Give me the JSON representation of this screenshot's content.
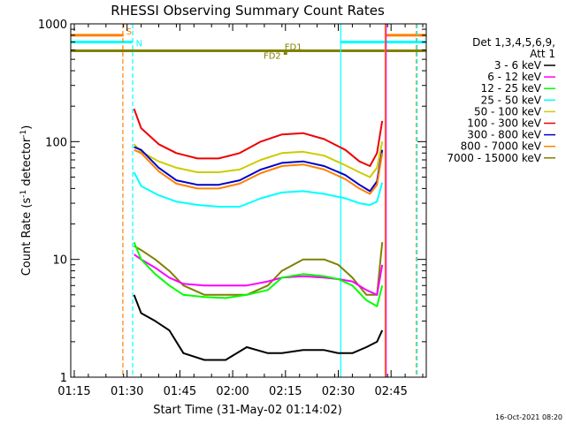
{
  "chart_data": {
    "type": "line",
    "title": "RHESSI Observing Summary Count Rates",
    "xlabel": "Start Time (31-May-02 01:14:02)",
    "ylabel_parts": [
      "Count Rate (s",
      "-1",
      " detector",
      "-1",
      ")"
    ],
    "yscale": "log",
    "ylim": [
      1,
      1000
    ],
    "xlim_minutes": [
      0,
      101
    ],
    "x_ticks": [
      {
        "label": "01:15",
        "min": 1
      },
      {
        "label": "01:30",
        "min": 16
      },
      {
        "label": "01:45",
        "min": 31
      },
      {
        "label": "02:00",
        "min": 46
      },
      {
        "label": "02:15",
        "min": 61
      },
      {
        "label": "02:30",
        "min": 76
      },
      {
        "label": "02:45",
        "min": 91
      }
    ],
    "y_ticks": [
      {
        "label": "1",
        "value": 1
      },
      {
        "label": "10",
        "value": 10
      },
      {
        "label": "100",
        "value": 100
      },
      {
        "label": "1000",
        "value": 1000
      }
    ],
    "legend": {
      "placement": "right",
      "header": [
        "Det 1,3,4,5,6,9,",
        "Att 1"
      ],
      "entries": [
        {
          "name": "3 - 6 keV",
          "color": "#000000"
        },
        {
          "name": "6 - 12 keV",
          "color": "#ff00ff"
        },
        {
          "name": "12 - 25 keV",
          "color": "#00ff00"
        },
        {
          "name": "25 - 50 keV",
          "color": "#00ffff"
        },
        {
          "name": "50 - 100 keV",
          "color": "#cccc00"
        },
        {
          "name": "100 - 300 keV",
          "color": "#ee0000"
        },
        {
          "name": "300 - 800 keV",
          "color": "#0000cc"
        },
        {
          "name": "800 - 7000 keV",
          "color": "#ff8000"
        },
        {
          "name": "7000 - 15000 keV",
          "color": "#808000"
        }
      ]
    },
    "series": [
      {
        "name": "100 - 300 keV",
        "color": "#ee0000",
        "x": [
          18,
          20,
          25,
          30,
          36,
          42,
          48,
          54,
          60,
          66,
          72,
          78,
          82,
          85,
          87,
          88.5
        ],
        "y": [
          190,
          130,
          95,
          80,
          72,
          72,
          80,
          100,
          115,
          118,
          105,
          85,
          68,
          62,
          80,
          150
        ]
      },
      {
        "name": "50 - 100 keV",
        "color": "#cccc00",
        "x": [
          18,
          20,
          25,
          30,
          36,
          42,
          48,
          54,
          60,
          66,
          72,
          78,
          82,
          85,
          87,
          88.5
        ],
        "y": [
          95,
          82,
          68,
          60,
          55,
          55,
          58,
          70,
          80,
          82,
          76,
          63,
          55,
          50,
          60,
          100
        ]
      },
      {
        "name": "300 - 800 keV",
        "color": "#0000cc",
        "x": [
          18,
          20,
          25,
          30,
          36,
          42,
          48,
          54,
          60,
          66,
          72,
          78,
          82,
          85,
          87,
          88.5
        ],
        "y": [
          90,
          85,
          60,
          47,
          43,
          43,
          47,
          58,
          66,
          68,
          62,
          52,
          43,
          38,
          46,
          85
        ]
      },
      {
        "name": "800 - 7000 keV",
        "color": "#ff8000",
        "x": [
          18,
          20,
          25,
          30,
          36,
          42,
          48,
          54,
          60,
          66,
          72,
          78,
          82,
          85,
          87,
          88.5
        ],
        "y": [
          85,
          80,
          56,
          44,
          40,
          40,
          44,
          54,
          62,
          64,
          58,
          48,
          40,
          36,
          43,
          80
        ]
      },
      {
        "name": "25 - 50 keV",
        "color": "#00ffff",
        "x": [
          18,
          20,
          25,
          30,
          36,
          42,
          48,
          54,
          60,
          66,
          72,
          78,
          82,
          85,
          87,
          88.5
        ],
        "y": [
          55,
          42,
          35,
          31,
          29,
          28,
          28,
          33,
          37,
          38,
          36,
          33,
          30,
          29,
          31,
          45
        ]
      },
      {
        "name": "7000 - 15000 keV",
        "color": "#808000",
        "x": [
          18,
          20,
          24,
          28,
          32,
          38,
          44,
          50,
          56,
          60,
          66,
          72,
          76,
          80,
          84,
          87,
          88.5
        ],
        "y": [
          13,
          12,
          10,
          8,
          6,
          5,
          5,
          5,
          6,
          8,
          10,
          10,
          9,
          7,
          5,
          5,
          14
        ]
      },
      {
        "name": "6 - 12 keV",
        "color": "#ff00ff",
        "x": [
          18,
          20,
          24,
          28,
          32,
          38,
          44,
          50,
          56,
          60,
          66,
          72,
          76,
          80,
          84,
          87,
          88.5
        ],
        "y": [
          11,
          10,
          8.5,
          7,
          6.2,
          6,
          6,
          6,
          6.5,
          7,
          7.2,
          7,
          6.8,
          6.5,
          5.5,
          5,
          9
        ]
      },
      {
        "name": "12 - 25 keV",
        "color": "#00ff00",
        "x": [
          18,
          20,
          24,
          28,
          32,
          38,
          44,
          50,
          56,
          60,
          66,
          72,
          76,
          80,
          84,
          87,
          88.5
        ],
        "y": [
          14,
          10,
          7.5,
          6,
          5,
          4.8,
          4.7,
          5,
          5.5,
          7,
          7.5,
          7.2,
          6.8,
          6,
          4.5,
          4,
          6
        ]
      },
      {
        "name": "3 - 6 keV",
        "color": "#000000",
        "x": [
          18,
          20,
          24,
          28,
          32,
          38,
          44,
          50,
          56,
          60,
          66,
          72,
          76,
          80,
          84,
          87,
          88.5
        ],
        "y": [
          5,
          3.5,
          3,
          2.5,
          1.6,
          1.4,
          1.4,
          1.8,
          1.6,
          1.6,
          1.7,
          1.7,
          1.6,
          1.6,
          1.8,
          2,
          2.5
        ]
      }
    ],
    "flag_bars": [
      {
        "label": "S",
        "color": "#ff8000",
        "value": 800,
        "segments": [
          [
            0,
            15
          ],
          [
            89.5,
            101
          ]
        ]
      },
      {
        "label": "N",
        "color": "#00ffff",
        "value": 700,
        "segments": [
          [
            0,
            17.5
          ],
          [
            76.5,
            101
          ]
        ]
      },
      {
        "label": "FD1",
        "color": "#808000",
        "value": 590,
        "segments": [
          [
            0,
            101
          ]
        ]
      },
      {
        "label": "FD2",
        "color": "#808000",
        "value": 560,
        "segments": [
          [
            60.5,
            61.5
          ]
        ]
      }
    ],
    "vlines": [
      {
        "min": 14.8,
        "color": "#ff8000",
        "style": "dashed"
      },
      {
        "min": 17.6,
        "color": "#00ffff",
        "style": "dashed"
      },
      {
        "min": 76.7,
        "color": "#00ffff",
        "style": "solid"
      },
      {
        "min": 89.3,
        "color": "#ff8000",
        "style": "solid"
      },
      {
        "min": 89.6,
        "color": "#ff00ff",
        "style": "solid"
      },
      {
        "min": 98.2,
        "color": "#ff8000",
        "style": "dashed"
      },
      {
        "min": 98.4,
        "color": "#00ffff",
        "style": "dashed"
      }
    ],
    "timestamp": "16-Oct-2021 08:20"
  }
}
